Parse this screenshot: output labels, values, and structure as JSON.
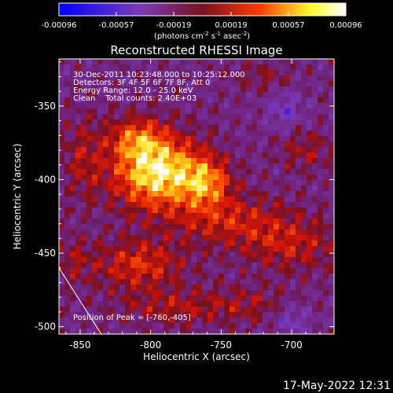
{
  "chart_data": {
    "type": "heatmap",
    "title": "Reconstructed RHESSI Image",
    "xlabel": "Heliocentric X (arcsec)",
    "ylabel": "Heliocentric Y (arcsec)",
    "xlim": [
      -865,
      -670
    ],
    "ylim": [
      -505,
      -318
    ],
    "x_ticks": [
      -850,
      -800,
      -750,
      -700
    ],
    "y_ticks": [
      -350,
      -400,
      -450,
      -500
    ],
    "colorbar": {
      "range": [
        -0.00096,
        0.00096
      ],
      "ticks": [
        "-0.00096",
        "-0.00057",
        "-0.00019",
        "0.00019",
        "0.00057",
        "0.00096"
      ],
      "units": [
        "(photons cm",
        "-2",
        " s",
        "-1",
        " asec",
        "-2",
        ")"
      ]
    },
    "info_lines": [
      "30-Dec-2011 10:23:48.000 to 10:25:12.000",
      "Detectors: 3F 4F 5F 6F 7F 8F, Att 0",
      "Energy Range: 12.0 - 25.0 keV",
      "Clean    Total counts: 2.40E+03"
    ],
    "peak_label": "Position of Peak = [-760,-405]",
    "peak": [
      -760,
      -405
    ],
    "sources": [
      {
        "x": -795,
        "y": -395,
        "sx": 22,
        "sy": 17,
        "amp": 0.00105
      },
      {
        "x": -760,
        "y": -402,
        "sx": 12,
        "sy": 12,
        "amp": 0.0006
      },
      {
        "x": -810,
        "y": -372,
        "sx": 14,
        "sy": 10,
        "amp": 0.0005
      },
      {
        "x": -742,
        "y": -428,
        "sx": 30,
        "sy": 12,
        "amp": 0.0004
      },
      {
        "x": -700,
        "y": -445,
        "sx": 24,
        "sy": 12,
        "amp": 0.00035
      },
      {
        "x": -808,
        "y": -458,
        "sx": 22,
        "sy": 12,
        "amp": 0.00048
      },
      {
        "x": -785,
        "y": -487,
        "sx": 26,
        "sy": 8,
        "amp": 0.0003
      },
      {
        "x": -730,
        "y": -485,
        "sx": 22,
        "sy": 9,
        "amp": 0.00025
      },
      {
        "x": -848,
        "y": -385,
        "sx": 10,
        "sy": 20,
        "amp": 0.00028
      },
      {
        "x": -690,
        "y": -380,
        "sx": 14,
        "sy": 10,
        "amp": 0.00026
      },
      {
        "x": -720,
        "y": -330,
        "sx": 14,
        "sy": 7,
        "amp": 0.0002
      },
      {
        "x": -855,
        "y": -455,
        "sx": 10,
        "sy": 12,
        "amp": 0.00022
      }
    ],
    "limb_line": [
      [
        -865,
        -460
      ],
      [
        -835,
        -505
      ]
    ]
  },
  "footer": {
    "timestamp": "17-May-2022 12:31"
  },
  "colors": {
    "background": "#000000",
    "foreground": "#ffffff",
    "colormap": [
      "#0000ff",
      "#7a3ab8",
      "#7a1020",
      "#ff3a00",
      "#ffff30",
      "#ffffff"
    ]
  }
}
